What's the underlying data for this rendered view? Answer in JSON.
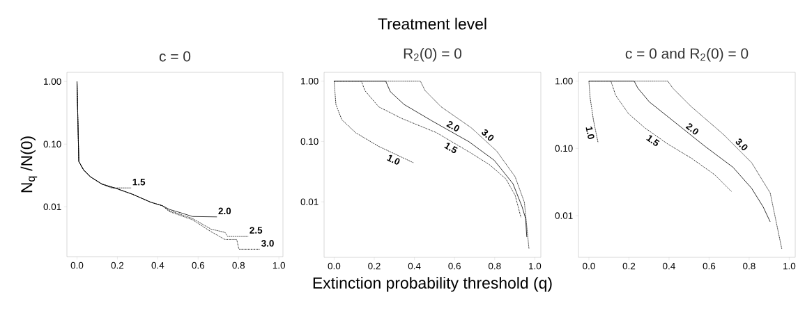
{
  "chart_data": [
    {
      "type": "line",
      "title": "c = 0",
      "ylabel": "N$_{q}$ /N(0)",
      "log": "y",
      "marker": "none",
      "grid": false,
      "legend": false,
      "xlim": [
        -0.05,
        1.02
      ],
      "ylim": [
        0.0016,
        1.4
      ],
      "xticks": [
        {
          "value": 0,
          "label": "0.0"
        },
        {
          "value": 0.2,
          "label": "0.2"
        },
        {
          "value": 0.4,
          "label": "0.4"
        },
        {
          "value": 0.6,
          "label": "0.6"
        },
        {
          "value": 0.8,
          "label": "0.8"
        },
        {
          "value": 1,
          "label": "1.0"
        }
      ],
      "yticks": [
        {
          "value": 0.01,
          "label": "0.01"
        },
        {
          "value": 0.1,
          "label": "0.10"
        },
        {
          "value": 1,
          "label": "1.00"
        }
      ],
      "series": [
        {
          "name": "1.5",
          "color": "#000000",
          "line_style": "dotted",
          "x": [
            0,
            0.009,
            0.032,
            0.067,
            0.124,
            0.17,
            0.268
          ],
          "values": [
            1,
            0.053,
            0.039,
            0.03,
            0.023,
            0.02,
            0.02
          ]
        },
        {
          "name": "2.0",
          "color": "#000000",
          "line_style": "solid",
          "x": [
            0,
            0.009,
            0.032,
            0.067,
            0.124,
            0.193,
            0.274,
            0.366,
            0.423,
            0.457,
            0.515,
            0.572,
            0.693
          ],
          "values": [
            1,
            0.053,
            0.039,
            0.03,
            0.023,
            0.0197,
            0.0159,
            0.0118,
            0.0104,
            0.0091,
            0.008,
            0.007,
            0.0069
          ]
        },
        {
          "name": "2.5",
          "color": "#000000",
          "line_style": "dashed",
          "x": [
            0,
            0.009,
            0.032,
            0.067,
            0.124,
            0.193,
            0.274,
            0.366,
            0.423,
            0.457,
            0.572,
            0.664,
            0.733,
            0.745,
            0.848
          ],
          "values": [
            1,
            0.053,
            0.039,
            0.03,
            0.023,
            0.0197,
            0.0159,
            0.0118,
            0.0104,
            0.0087,
            0.0065,
            0.0044,
            0.0039,
            0.0034,
            0.0034
          ]
        },
        {
          "name": "3.0",
          "color": "#000000",
          "line_style": "dashdot",
          "x": [
            0,
            0.009,
            0.032,
            0.067,
            0.124,
            0.193,
            0.274,
            0.366,
            0.423,
            0.457,
            0.572,
            0.664,
            0.733,
            0.791,
            0.802,
            0.906
          ],
          "values": [
            1,
            0.053,
            0.039,
            0.03,
            0.023,
            0.0197,
            0.0159,
            0.0118,
            0.0104,
            0.0084,
            0.0062,
            0.004,
            0.003,
            0.003,
            0.0021,
            0.0021
          ]
        }
      ]
    },
    {
      "type": "line",
      "title": "R$_{2}$(0) = 0",
      "xlabel": "Extinction probability threshold (q)",
      "log": "y",
      "marker": "none",
      "grid": false,
      "legend": false,
      "xlim": [
        -0.05,
        1.03
      ],
      "ylim": [
        0.0012,
        1.4
      ],
      "xticks": [
        {
          "value": 0,
          "label": "0.0"
        },
        {
          "value": 0.2,
          "label": "0.2"
        },
        {
          "value": 0.4,
          "label": "0.4"
        },
        {
          "value": 0.6,
          "label": "0.6"
        },
        {
          "value": 0.8,
          "label": "0.8"
        },
        {
          "value": 1,
          "label": "1.0"
        }
      ],
      "yticks": [
        {
          "value": 0.01,
          "label": "0.01"
        },
        {
          "value": 0.1,
          "label": "0.10"
        },
        {
          "value": 1,
          "label": "1.00"
        }
      ],
      "series": [
        {
          "name": "1.0",
          "color": "#000000",
          "line_style": "dashed",
          "x": [
            0,
            0.009,
            0.038,
            0.107,
            0.222,
            0.395
          ],
          "values": [
            1,
            0.41,
            0.23,
            0.14,
            0.083,
            0.0445
          ]
        },
        {
          "name": "1.5",
          "color": "#000000",
          "line_style": "dashdot",
          "x": [
            0,
            0.136,
            0.153,
            0.222,
            0.338,
            0.51,
            0.683,
            0.775,
            0.856,
            0.902,
            0.931
          ],
          "values": [
            1,
            1,
            0.7,
            0.376,
            0.24,
            0.14,
            0.064,
            0.041,
            0.024,
            0.0128,
            0.0055
          ]
        },
        {
          "name": "2.0",
          "color": "#000000",
          "line_style": "solid",
          "x": [
            0,
            0.257,
            0.28,
            0.349,
            0.487,
            0.672,
            0.798,
            0.891,
            0.937,
            0.954,
            0.96
          ],
          "values": [
            1,
            1,
            0.67,
            0.41,
            0.22,
            0.099,
            0.0487,
            0.02,
            0.0082,
            0.0053,
            0.0026
          ]
        },
        {
          "name": "3.0",
          "color": "#000000",
          "line_style": "dotted",
          "x": [
            0,
            0.43,
            0.453,
            0.533,
            0.683,
            0.81,
            0.902,
            0.948,
            0.971
          ],
          "values": [
            1,
            1,
            0.7,
            0.376,
            0.169,
            0.0695,
            0.026,
            0.0098,
            0.00166
          ]
        }
      ],
      "annotations": [
        "Treatment level"
      ]
    },
    {
      "type": "line",
      "title": "c = 0  and  R$_{2}$(0) = 0",
      "log": "y",
      "marker": "none",
      "grid": false,
      "legend": false,
      "xlim": [
        -0.052,
        1.03
      ],
      "ylim": [
        0.0024,
        1.35
      ],
      "xticks": [
        {
          "value": 0,
          "label": "0.0"
        },
        {
          "value": 0.2,
          "label": "0.2"
        },
        {
          "value": 0.4,
          "label": "0.4"
        },
        {
          "value": 0.6,
          "label": "0.6"
        },
        {
          "value": 0.8,
          "label": "0.8"
        },
        {
          "value": 1,
          "label": "1.0"
        }
      ],
      "yticks": [
        {
          "value": 0.01,
          "label": "0.01"
        },
        {
          "value": 0.1,
          "label": "0.10"
        },
        {
          "value": 1,
          "label": "1.00"
        }
      ],
      "series": [
        {
          "name": "1.0",
          "color": "#000000",
          "line_style": "dashed",
          "x": [
            0,
            0.006,
            0.023,
            0.046
          ],
          "values": [
            1,
            0.57,
            0.26,
            0.121
          ]
        },
        {
          "name": "1.5",
          "color": "#000000",
          "line_style": "dashdot",
          "x": [
            0,
            0.11,
            0.133,
            0.197,
            0.278,
            0.394,
            0.51,
            0.626,
            0.713
          ],
          "values": [
            1,
            1,
            0.62,
            0.33,
            0.203,
            0.116,
            0.072,
            0.041,
            0.0227
          ]
        },
        {
          "name": "2.0",
          "color": "#000000",
          "line_style": "solid",
          "x": [
            0,
            0.226,
            0.244,
            0.302,
            0.418,
            0.58,
            0.719,
            0.812,
            0.87,
            0.905
          ],
          "values": [
            1,
            1,
            0.79,
            0.49,
            0.26,
            0.107,
            0.0525,
            0.0256,
            0.0135,
            0.0081
          ]
        },
        {
          "name": "3.0",
          "color": "#000000",
          "line_style": "dotted",
          "x": [
            0,
            0.394,
            0.418,
            0.51,
            0.673,
            0.812,
            0.905,
            0.963
          ],
          "values": [
            1,
            1,
            0.79,
            0.42,
            0.16,
            0.0615,
            0.0218,
            0.0032
          ]
        }
      ]
    }
  ]
}
